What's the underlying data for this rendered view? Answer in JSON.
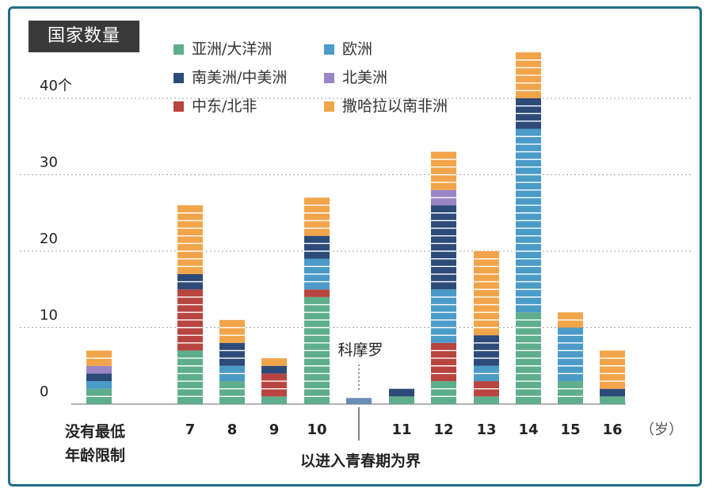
{
  "chart_data": {
    "type": "bar",
    "stacked": true,
    "title": "国家数量",
    "ylim": [
      0,
      46
    ],
    "yticks": [
      {
        "v": 0,
        "label": "0"
      },
      {
        "v": 10,
        "label": "10"
      },
      {
        "v": 20,
        "label": "20"
      },
      {
        "v": 30,
        "label": "30"
      },
      {
        "v": 40,
        "label": "40个"
      }
    ],
    "unit_label": "（岁）",
    "no_min_label": [
      "没有最低",
      "年龄限制"
    ],
    "puberty_label": "以进入青春期为界",
    "comoros_label": "科摩罗",
    "categories": [
      "没有最低年龄限制",
      "7",
      "8",
      "9",
      "10",
      "以进入青春期为界",
      "11",
      "12",
      "13",
      "14",
      "15",
      "16"
    ],
    "tick_labels": [
      "",
      "7",
      "8",
      "9",
      "10",
      "",
      "11",
      "12",
      "13",
      "14",
      "15",
      "16"
    ],
    "series": [
      {
        "name": "亚洲/大洋洲",
        "color": "#5fae8c",
        "values": [
          2,
          7,
          3,
          1,
          14,
          0,
          1,
          3,
          1,
          12,
          3,
          1
        ]
      },
      {
        "name": "中东/北非",
        "color": "#b8453f",
        "values": [
          0,
          8,
          0,
          3,
          1,
          0,
          0,
          5,
          2,
          0,
          0,
          0
        ]
      },
      {
        "name": "欧洲",
        "color": "#4a9bc8",
        "values": [
          1,
          0,
          2,
          0,
          4,
          0,
          0,
          7,
          2,
          24,
          7,
          0
        ]
      },
      {
        "name": "南美洲/中美洲",
        "color": "#2c4b78",
        "values": [
          1,
          2,
          3,
          1,
          3,
          0,
          1,
          11,
          4,
          4,
          0,
          1
        ]
      },
      {
        "name": "北美洲",
        "color": "#9a86c6",
        "values": [
          1,
          0,
          0,
          0,
          0,
          0,
          0,
          2,
          0,
          0,
          0,
          0
        ]
      },
      {
        "name": "撒哈拉以南非洲",
        "color": "#f2a44a",
        "values": [
          2,
          9,
          3,
          1,
          5,
          0,
          0,
          5,
          11,
          6,
          2,
          5
        ]
      }
    ],
    "special_bars": [
      {
        "category": "以进入青春期为界",
        "value": 1,
        "color": "#6a8db8"
      }
    ],
    "legend": [
      {
        "name": "亚洲/大洋洲",
        "color": "#5fae8c"
      },
      {
        "name": "欧洲",
        "color": "#4a9bc8"
      },
      {
        "name": "南美洲/中美洲",
        "color": "#2c4b78"
      },
      {
        "name": "北美洲",
        "color": "#9a86c6"
      },
      {
        "name": "中东/北非",
        "color": "#b8453f"
      },
      {
        "name": "撒哈拉以南非洲",
        "color": "#f2a44a"
      }
    ],
    "grid": true,
    "legend_position": "top-left"
  }
}
